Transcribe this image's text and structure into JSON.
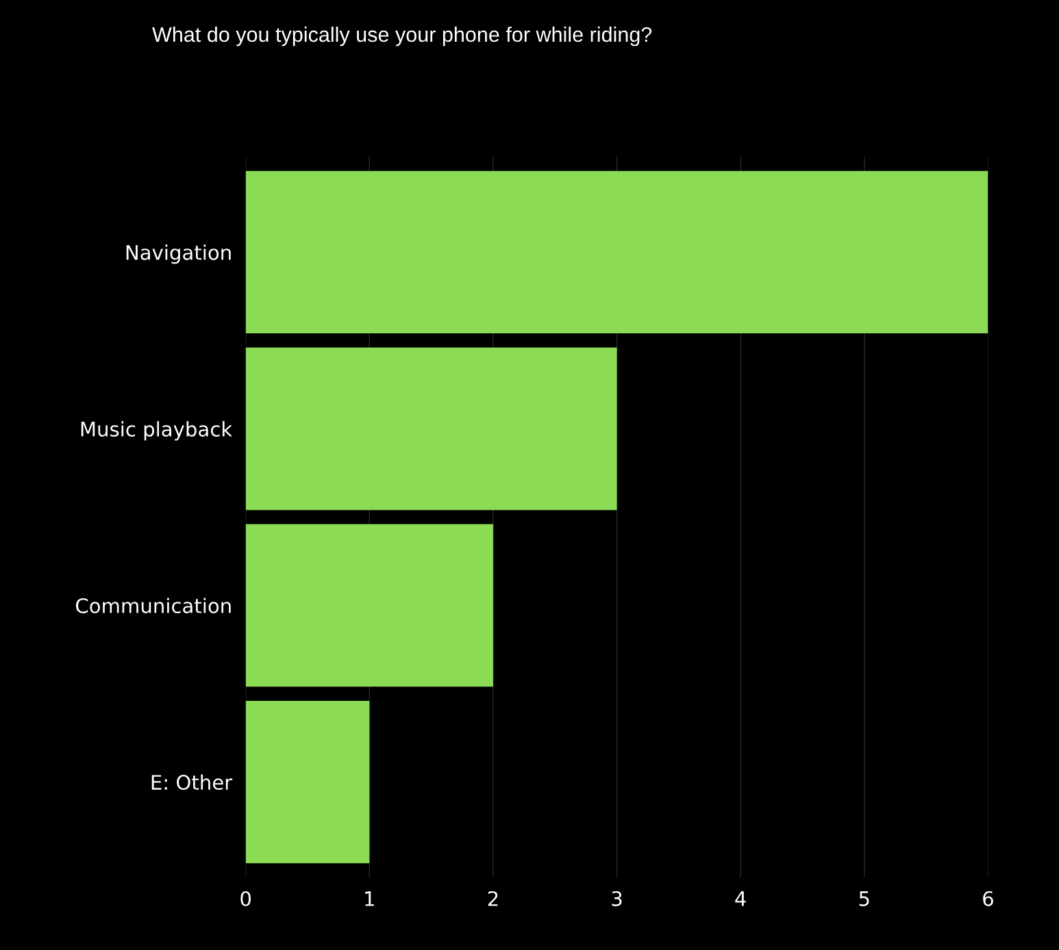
{
  "chart_data": {
    "type": "bar",
    "orientation": "horizontal",
    "title": "What do you typically use your phone for while riding?",
    "categories": [
      "Navigation",
      "Music playback",
      "Communication",
      "E: Other"
    ],
    "values": [
      6,
      3,
      2,
      1
    ],
    "color": "#8bdb55",
    "xlim": [
      0,
      6
    ],
    "xticks": [
      0,
      1,
      2,
      3,
      4,
      5,
      6
    ],
    "grid": "x"
  }
}
